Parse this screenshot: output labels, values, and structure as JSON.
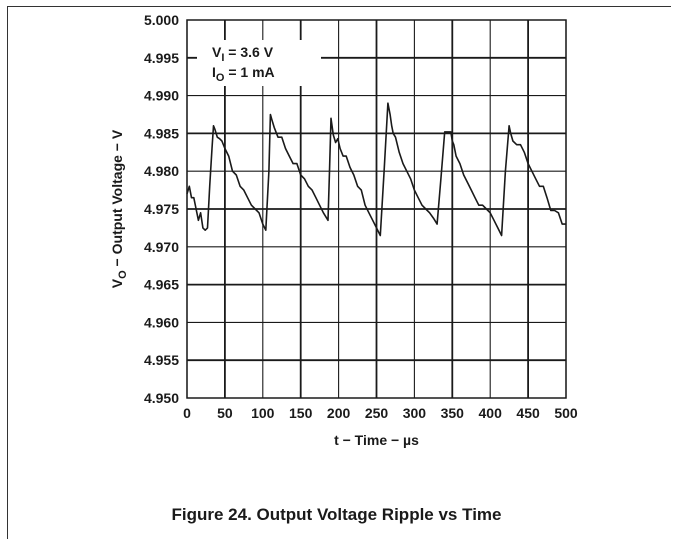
{
  "chart_data": {
    "type": "line",
    "title": "Figure 24. Output Voltage Ripple vs Time",
    "xlabel": "t − Time − µs",
    "ylabel": "V₀ − Output Voltage − V",
    "ylabel_main": "V",
    "ylabel_sub": "O",
    "ylabel_rest": " − Output Voltage − V",
    "xlim": [
      0,
      500
    ],
    "ylim": [
      4.95,
      5.0
    ],
    "xticks": [
      "0",
      "50",
      "100",
      "150",
      "200",
      "250",
      "300",
      "350",
      "400",
      "450",
      "500"
    ],
    "yticks": [
      "4.950",
      "4.955",
      "4.960",
      "4.965",
      "4.970",
      "4.975",
      "4.980",
      "4.985",
      "4.990",
      "4.995",
      "5.000"
    ],
    "grid": true,
    "annotation": {
      "line1_main": "V",
      "line1_sub": "I",
      "line1_rest": " = 3.6 V",
      "line2_main": "I",
      "line2_sub": "O",
      "line2_rest": " = 1 mA"
    },
    "series": [
      {
        "color": "#1a1a1a",
        "x": [
          0,
          3,
          6,
          9,
          12,
          15,
          18,
          21,
          24,
          27,
          30,
          33,
          35,
          37,
          40,
          43,
          46,
          50,
          55,
          60,
          65,
          70,
          75,
          80,
          85,
          90,
          95,
          100,
          104,
          108,
          110,
          112,
          115,
          120,
          125,
          130,
          135,
          140,
          145,
          150,
          155,
          160,
          165,
          170,
          175,
          180,
          186,
          188,
          190,
          193,
          196,
          199,
          202,
          206,
          210,
          215,
          220,
          225,
          230,
          235,
          240,
          245,
          250,
          255,
          260,
          265,
          268,
          270,
          272,
          275,
          280,
          285,
          290,
          295,
          300,
          305,
          310,
          315,
          320,
          325,
          330,
          335,
          340,
          345,
          348,
          350,
          352,
          355,
          360,
          365,
          370,
          375,
          380,
          385,
          390,
          395,
          400,
          405,
          410,
          415,
          420,
          425,
          427,
          430,
          435,
          440,
          445,
          450,
          455,
          460,
          465,
          470,
          475,
          480,
          485,
          490,
          495,
          500
        ],
        "y": [
          4.977,
          4.978,
          4.9765,
          4.9765,
          4.975,
          4.9735,
          4.9745,
          4.9725,
          4.9722,
          4.9725,
          4.978,
          4.983,
          4.986,
          4.9855,
          4.9845,
          4.9843,
          4.984,
          4.983,
          4.982,
          4.98,
          4.9795,
          4.978,
          4.9775,
          4.9765,
          4.9755,
          4.975,
          4.9745,
          4.973,
          4.9722,
          4.98,
          4.9875,
          4.9868,
          4.9858,
          4.9845,
          4.9845,
          4.983,
          4.982,
          4.981,
          4.981,
          4.9795,
          4.979,
          4.978,
          4.9775,
          4.9765,
          4.9755,
          4.9745,
          4.9735,
          4.98,
          4.987,
          4.9848,
          4.9838,
          4.9843,
          4.983,
          4.982,
          4.982,
          4.9805,
          4.9795,
          4.978,
          4.9775,
          4.9755,
          4.9745,
          4.9735,
          4.9725,
          4.9715,
          4.98,
          4.989,
          4.9875,
          4.986,
          4.985,
          4.9845,
          4.9825,
          4.981,
          4.98,
          4.979,
          4.9775,
          4.9765,
          4.9755,
          4.975,
          4.9745,
          4.9738,
          4.973,
          4.979,
          4.9852,
          4.9852,
          4.9852,
          4.984,
          4.9835,
          4.982,
          4.981,
          4.9795,
          4.9785,
          4.9775,
          4.9765,
          4.9755,
          4.9755,
          4.975,
          4.9745,
          4.9735,
          4.9725,
          4.9715,
          4.98,
          4.986,
          4.985,
          4.984,
          4.9835,
          4.9835,
          4.9825,
          4.981,
          4.98,
          4.979,
          4.978,
          4.978,
          4.9765,
          4.9748,
          4.9748,
          4.9745,
          4.973,
          4.973
        ]
      }
    ]
  }
}
